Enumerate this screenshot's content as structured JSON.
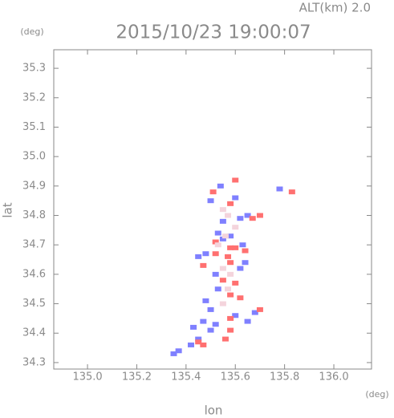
{
  "chart_data": {
    "type": "scatter",
    "title": "2015/10/23 19:00:07",
    "subtitle": "ALT(km) 2.0",
    "x_label": "lon",
    "y_label": "lat",
    "x_unit": "(deg)",
    "y_unit": "(deg)",
    "xlim": [
      134.863,
      136.153
    ],
    "ylim": [
      34.278,
      35.363
    ],
    "xticks": [
      {
        "value": 135.0,
        "label": "135.0"
      },
      135.2,
      135.4,
      135.6,
      135.8,
      {
        "value": 136.0,
        "label": "136.0"
      }
    ],
    "yticks": [
      34.3,
      34.4,
      34.5,
      34.6,
      34.7,
      34.8,
      34.9,
      {
        "value": 35.0,
        "label": "35.0"
      },
      35.1,
      35.2,
      35.3
    ],
    "series": [
      {
        "color": "#7f80ff",
        "x": [
          135.35,
          135.37,
          135.42,
          135.45,
          135.43,
          135.47,
          135.5,
          135.52,
          135.6,
          135.65,
          135.68,
          135.5,
          135.48,
          135.53,
          135.52,
          135.45,
          135.48,
          135.62,
          135.64,
          135.55,
          135.58,
          135.63,
          135.53,
          135.62,
          135.65,
          135.55,
          135.5,
          135.6,
          135.78,
          135.54
        ],
        "y": [
          34.33,
          34.34,
          34.36,
          34.38,
          34.42,
          34.44,
          34.41,
          34.43,
          34.46,
          34.44,
          34.47,
          34.48,
          34.51,
          34.55,
          34.6,
          34.66,
          34.67,
          34.62,
          34.64,
          34.72,
          34.73,
          34.7,
          34.74,
          34.79,
          34.8,
          34.78,
          34.85,
          34.86,
          34.89,
          34.9
        ]
      },
      {
        "color": "#ff7070",
        "x": [
          135.45,
          135.47,
          135.56,
          135.58,
          135.58,
          135.7,
          135.62,
          135.58,
          135.55,
          135.6,
          135.47,
          135.58,
          135.52,
          135.57,
          135.6,
          135.64,
          135.52,
          135.58,
          135.67,
          135.7,
          135.58,
          135.6,
          135.83,
          135.51
        ],
        "y": [
          34.37,
          34.36,
          34.38,
          34.41,
          34.45,
          34.48,
          34.52,
          34.53,
          34.58,
          34.57,
          34.63,
          34.64,
          34.67,
          34.66,
          34.69,
          34.68,
          34.71,
          34.69,
          34.79,
          34.8,
          34.84,
          34.92,
          34.88,
          34.88
        ]
      },
      {
        "color": "#f4d4dc",
        "x": [
          135.55,
          135.57,
          135.55,
          135.58,
          135.53,
          135.56,
          135.6,
          135.57,
          135.55
        ],
        "y": [
          34.5,
          34.55,
          34.62,
          34.6,
          34.7,
          34.73,
          34.76,
          34.8,
          34.82
        ]
      }
    ]
  }
}
